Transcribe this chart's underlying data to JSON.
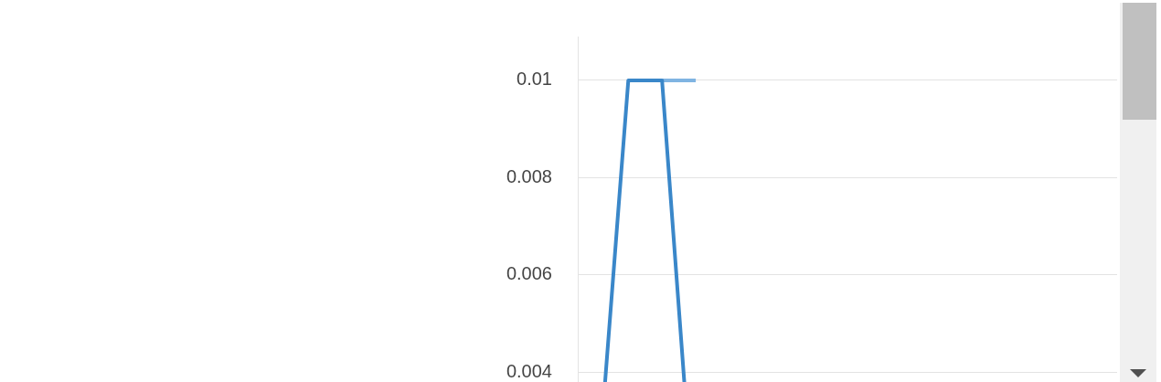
{
  "chart_data": {
    "type": "line",
    "categories": [
      null,
      null,
      null,
      null,
      null,
      null,
      null,
      null,
      null,
      null,
      null,
      null,
      null,
      null,
      null,
      null
    ],
    "series": [
      {
        "color": "#3a87c9",
        "values": [
          0.001,
          0.01,
          0.01,
          0.0006,
          null,
          null,
          null,
          null,
          null,
          null,
          null,
          null,
          null,
          null,
          null,
          null
        ]
      },
      {
        "color": "#80b4e2",
        "values": [
          null,
          null,
          0.01,
          0.01,
          null,
          null,
          null,
          null,
          null,
          null,
          null,
          null,
          null,
          null,
          null,
          null
        ]
      }
    ],
    "ylim": [
      0,
      0.0109
    ],
    "yticks": [
      0.004,
      0.006,
      0.008,
      0.01
    ],
    "grid": "y",
    "legend": false,
    "marker": "none",
    "line_style": "solid",
    "tick_labels": "y"
  }
}
